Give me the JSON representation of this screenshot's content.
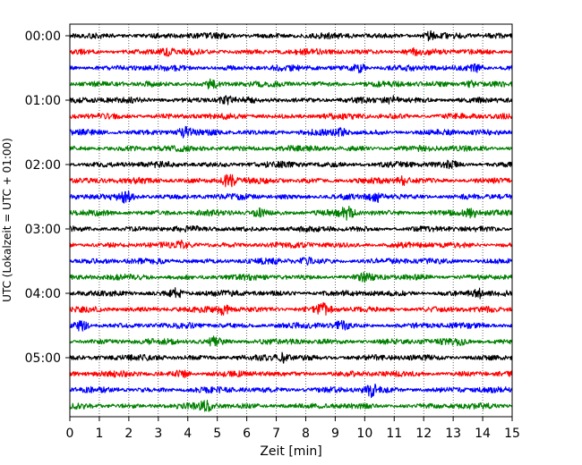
{
  "chart_data": {
    "type": "line",
    "title": "",
    "xlabel": "Zeit  [min]",
    "ylabel": "UTC (Lokalzeit = UTC + 01:00)",
    "xlim": [
      0,
      15
    ],
    "xticks": [
      "0",
      "1",
      "2",
      "3",
      "4",
      "5",
      "6",
      "7",
      "8",
      "9",
      "10",
      "11",
      "12",
      "13",
      "14",
      "15"
    ],
    "y_tick_labels": [
      "00:00",
      "01:00",
      "02:00",
      "03:00",
      "04:00",
      "05:00"
    ],
    "y_tick_trace_index": [
      0,
      4,
      8,
      12,
      16,
      20
    ],
    "trace_count": 24,
    "trace_interval_minutes": 15,
    "trace_colors": [
      "#000000",
      "#ff0000",
      "#0000ff",
      "#008000"
    ],
    "grid": {
      "x_dotted": true
    },
    "bursts": [
      {
        "trace": 0,
        "t": 12.2,
        "a": 1.4
      },
      {
        "trace": 1,
        "t": 3.3,
        "a": 1.3
      },
      {
        "trace": 1,
        "t": 11.6,
        "a": 1.2
      },
      {
        "trace": 2,
        "t": 9.8,
        "a": 1.5
      },
      {
        "trace": 2,
        "t": 13.8,
        "a": 1.3
      },
      {
        "trace": 3,
        "t": 4.8,
        "a": 1.4
      },
      {
        "trace": 3,
        "t": 13.6,
        "a": 1.2
      },
      {
        "trace": 4,
        "t": 5.3,
        "a": 1.3
      },
      {
        "trace": 4,
        "t": 10.9,
        "a": 1.3
      },
      {
        "trace": 6,
        "t": 3.9,
        "a": 1.5
      },
      {
        "trace": 6,
        "t": 9.2,
        "a": 1.2
      },
      {
        "trace": 8,
        "t": 12.9,
        "a": 1.2
      },
      {
        "trace": 9,
        "t": 5.4,
        "a": 2.0
      },
      {
        "trace": 9,
        "t": 11.3,
        "a": 1.3
      },
      {
        "trace": 10,
        "t": 1.9,
        "a": 1.5
      },
      {
        "trace": 10,
        "t": 10.4,
        "a": 1.5
      },
      {
        "trace": 11,
        "t": 6.4,
        "a": 1.4
      },
      {
        "trace": 11,
        "t": 9.4,
        "a": 1.8
      },
      {
        "trace": 11,
        "t": 13.6,
        "a": 1.4
      },
      {
        "trace": 13,
        "t": 3.8,
        "a": 1.2
      },
      {
        "trace": 14,
        "t": 8.0,
        "a": 1.2
      },
      {
        "trace": 15,
        "t": 10.0,
        "a": 1.2
      },
      {
        "trace": 16,
        "t": 3.6,
        "a": 1.5
      },
      {
        "trace": 16,
        "t": 13.9,
        "a": 1.4
      },
      {
        "trace": 17,
        "t": 5.2,
        "a": 1.5
      },
      {
        "trace": 17,
        "t": 8.6,
        "a": 1.5
      },
      {
        "trace": 18,
        "t": 0.4,
        "a": 1.5
      },
      {
        "trace": 18,
        "t": 9.2,
        "a": 1.3
      },
      {
        "trace": 19,
        "t": 4.9,
        "a": 1.4
      },
      {
        "trace": 19,
        "t": 13.2,
        "a": 1.2
      },
      {
        "trace": 20,
        "t": 7.2,
        "a": 1.6
      },
      {
        "trace": 21,
        "t": 3.8,
        "a": 1.2
      },
      {
        "trace": 22,
        "t": 10.2,
        "a": 1.8
      },
      {
        "trace": 23,
        "t": 4.6,
        "a": 1.6
      }
    ]
  }
}
